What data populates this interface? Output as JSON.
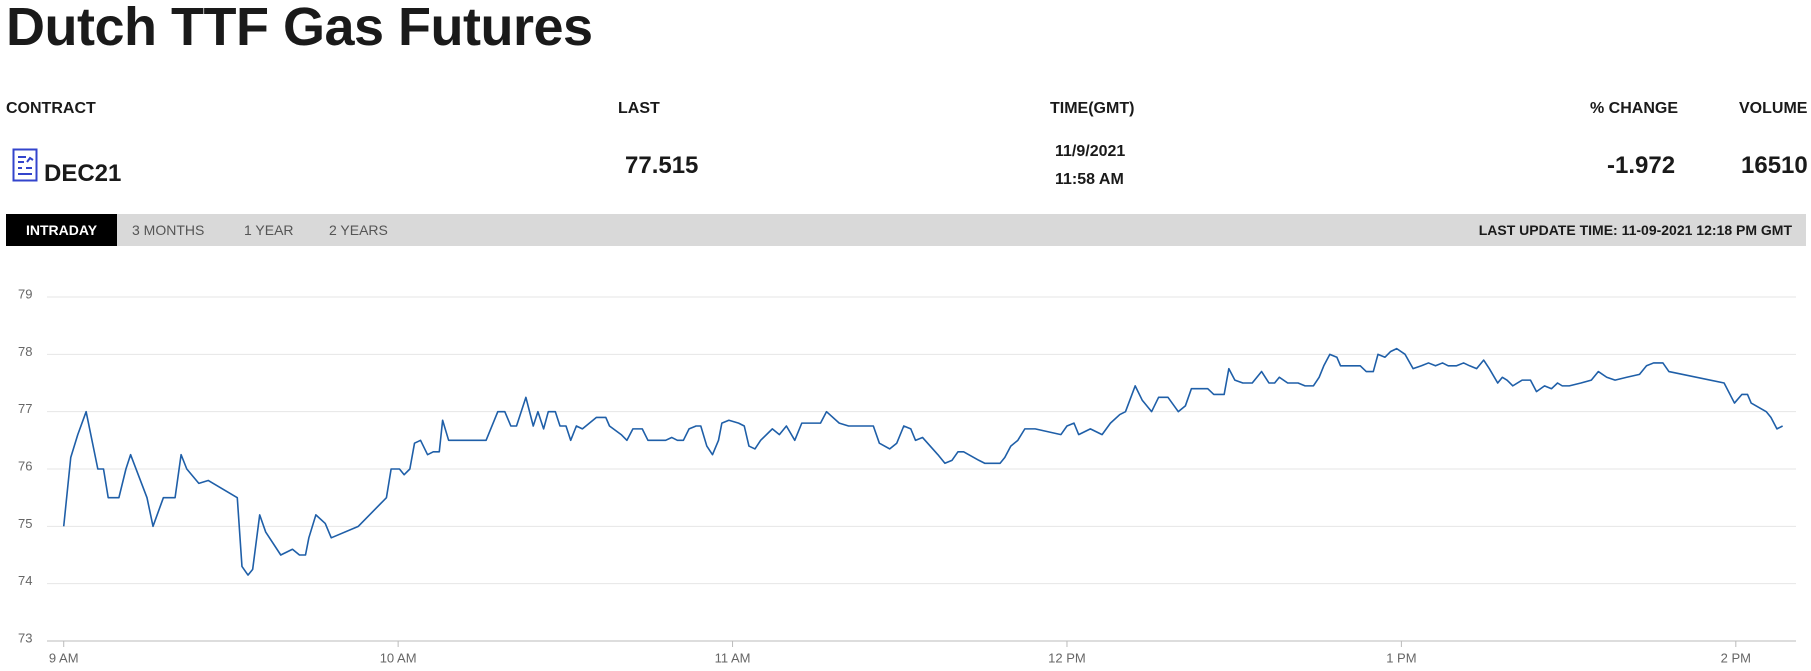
{
  "header": {
    "title": "Dutch TTF Gas Futures"
  },
  "table": {
    "columns": [
      "CONTRACT",
      "LAST",
      "TIME(GMT)",
      "% CHANGE",
      "VOLUME"
    ],
    "row": {
      "contract": "DEC21",
      "last": 77.515,
      "date": "11/9/2021",
      "time": "11:58 AM",
      "change": -1.972,
      "volume": 16510
    }
  },
  "tabs": [
    "INTRADAY",
    "3 MONTHS",
    "1 YEAR",
    "2 YEARS"
  ],
  "last_update": "LAST UPDATE TIME: 11-09-2021 12:18 PM GMT",
  "chart_data": {
    "type": "line",
    "x": [
      9,
      9.021,
      9.042,
      9.067,
      9.102,
      9.119,
      9.133,
      9.165,
      9.186,
      9.2,
      9.249,
      9.267,
      9.298,
      9.333,
      9.351,
      9.368,
      9.404,
      9.432,
      9.519,
      9.533,
      9.551,
      9.565,
      9.586,
      9.604,
      9.649,
      9.684,
      9.705,
      9.723,
      9.733,
      9.754,
      9.782,
      9.8,
      9.881,
      9.965,
      9.979,
      10.004,
      10.018,
      10.035,
      10.049,
      10.067,
      10.088,
      10.105,
      10.123,
      10.133,
      10.151,
      10.263,
      10.298,
      10.319,
      10.337,
      10.354,
      10.382,
      10.404,
      10.418,
      10.435,
      10.449,
      10.47,
      10.484,
      10.502,
      10.516,
      10.533,
      10.551,
      10.572,
      10.593,
      10.621,
      10.632,
      10.667,
      10.684,
      10.702,
      10.73,
      10.747,
      10.8,
      10.818,
      10.835,
      10.853,
      10.87,
      10.891,
      10.905,
      10.923,
      10.94,
      10.958,
      10.968,
      10.989,
      11.018,
      11.035,
      11.049,
      11.067,
      11.084,
      11.119,
      11.14,
      11.161,
      11.186,
      11.207,
      11.263,
      11.281,
      11.319,
      11.347,
      11.421,
      11.439,
      11.47,
      11.491,
      11.512,
      11.533,
      11.547,
      11.568,
      11.614,
      11.635,
      11.656,
      11.674,
      11.691,
      11.737,
      11.754,
      11.8,
      11.814,
      11.832,
      11.853,
      11.874,
      11.905,
      11.982,
      12,
      12.021,
      12.035,
      12.07,
      12.105,
      12.13,
      12.158,
      12.175,
      12.204,
      12.225,
      12.253,
      12.274,
      12.302,
      12.333,
      12.354,
      12.372,
      12.386,
      12.421,
      12.439,
      12.47,
      12.484,
      12.502,
      12.526,
      12.554,
      12.582,
      12.604,
      12.621,
      12.635,
      12.66,
      12.691,
      12.712,
      12.737,
      12.754,
      12.768,
      12.786,
      12.807,
      12.818,
      12.877,
      12.895,
      12.916,
      12.93,
      12.951,
      12.968,
      12.986,
      13.011,
      13.035,
      13.06,
      13.081,
      13.102,
      13.123,
      13.14,
      13.165,
      13.186,
      13.204,
      13.225,
      13.246,
      13.263,
      13.288,
      13.302,
      13.316,
      13.333,
      13.361,
      13.386,
      13.404,
      13.428,
      13.449,
      13.467,
      13.481,
      13.502,
      13.537,
      13.568,
      13.589,
      13.614,
      13.639,
      13.674,
      13.712,
      13.733,
      13.754,
      13.782,
      13.8,
      13.965,
      13.996,
      14.018,
      14.035,
      14.046,
      14.091,
      14.105,
      14.123,
      14.14
    ],
    "series": [
      {
        "color": "#1f5fa8",
        "values": [
          75.0,
          76.2,
          76.6,
          77.0,
          76.0,
          76.0,
          75.5,
          75.5,
          76.0,
          76.25,
          75.5,
          75.0,
          75.5,
          75.5,
          76.25,
          76.0,
          75.75,
          75.8,
          75.5,
          74.3,
          74.15,
          74.25,
          75.2,
          74.9,
          74.5,
          74.6,
          74.5,
          74.5,
          74.8,
          75.2,
          75.05,
          74.8,
          75.0,
          75.5,
          76.0,
          76.0,
          75.9,
          76.0,
          76.45,
          76.5,
          76.25,
          76.3,
          76.3,
          76.85,
          76.5,
          76.5,
          77.0,
          77.0,
          76.75,
          76.75,
          77.25,
          76.75,
          77.0,
          76.7,
          77.0,
          77.0,
          76.75,
          76.75,
          76.5,
          76.75,
          76.7,
          76.8,
          76.9,
          76.9,
          76.75,
          76.6,
          76.5,
          76.7,
          76.7,
          76.5,
          76.5,
          76.55,
          76.5,
          76.5,
          76.7,
          76.75,
          76.75,
          76.4,
          76.25,
          76.5,
          76.8,
          76.85,
          76.8,
          76.75,
          76.4,
          76.35,
          76.5,
          76.7,
          76.6,
          76.75,
          76.5,
          76.8,
          76.8,
          77.0,
          76.8,
          76.75,
          76.75,
          76.45,
          76.35,
          76.45,
          76.75,
          76.7,
          76.5,
          76.55,
          76.25,
          76.1,
          76.15,
          76.3,
          76.3,
          76.15,
          76.1,
          76.1,
          76.2,
          76.4,
          76.5,
          76.7,
          76.7,
          76.6,
          76.75,
          76.8,
          76.6,
          76.7,
          76.6,
          76.8,
          76.95,
          77.0,
          77.45,
          77.2,
          77.0,
          77.25,
          77.25,
          77.0,
          77.1,
          77.4,
          77.4,
          77.4,
          77.3,
          77.3,
          77.75,
          77.55,
          77.5,
          77.5,
          77.7,
          77.5,
          77.5,
          77.6,
          77.5,
          77.5,
          77.45,
          77.45,
          77.6,
          77.8,
          78.0,
          77.95,
          77.8,
          77.8,
          77.7,
          77.7,
          78.0,
          77.95,
          78.05,
          78.1,
          78.0,
          77.75,
          77.8,
          77.85,
          77.8,
          77.85,
          77.8,
          77.8,
          77.85,
          77.8,
          77.75,
          77.9,
          77.75,
          77.5,
          77.6,
          77.55,
          77.45,
          77.55,
          77.55,
          77.35,
          77.45,
          77.4,
          77.5,
          77.45,
          77.45,
          77.5,
          77.55,
          77.7,
          77.6,
          77.55,
          77.6,
          77.65,
          77.8,
          77.85,
          77.85,
          77.7,
          77.5,
          77.15,
          77.3,
          77.3,
          77.15,
          77.0,
          76.9,
          76.7,
          76.75
        ]
      }
    ],
    "xlim": [
      8.95,
      14.18
    ],
    "xticks": [
      {
        "value": 9,
        "label": "9 AM"
      },
      {
        "value": 10,
        "label": "10 AM"
      },
      {
        "value": 11,
        "label": "11 AM"
      },
      {
        "value": 12,
        "label": "12 PM"
      },
      {
        "value": 13,
        "label": "1 PM"
      },
      {
        "value": 14,
        "label": "2 PM"
      }
    ],
    "ylim": [
      73,
      79
    ],
    "yticks": [
      73,
      74,
      75,
      76,
      77,
      78,
      79
    ],
    "grid": true
  }
}
